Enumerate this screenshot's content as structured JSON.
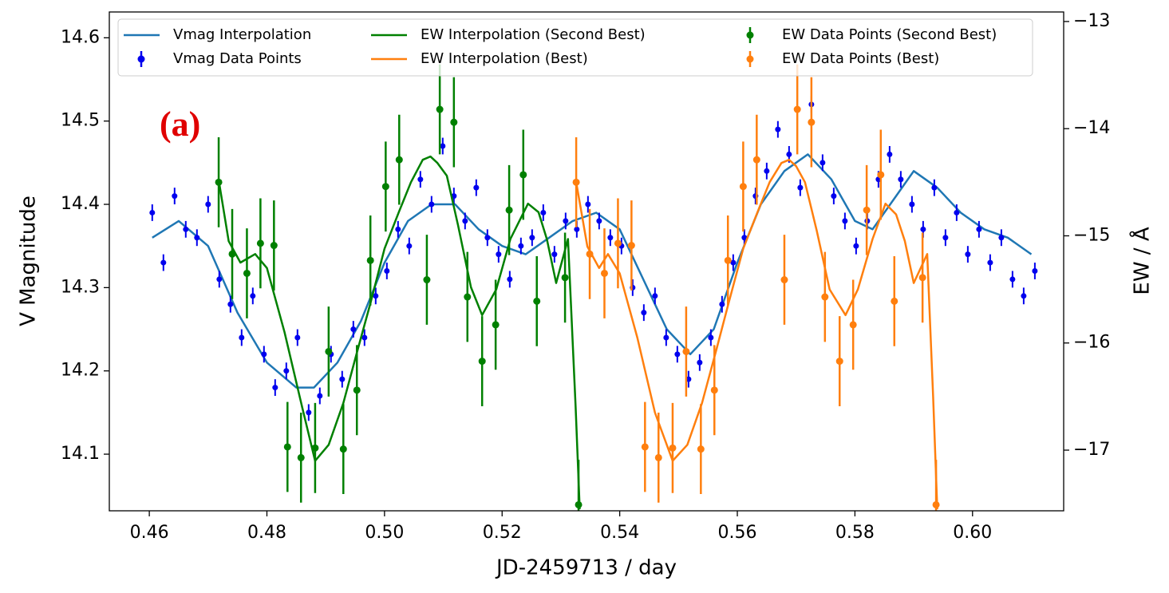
{
  "chart_data": {
    "type": "line",
    "annotation": "(a)",
    "xlabel": "JD-2459713 / day",
    "ylabel": "V Magnitude",
    "y2label": "EW / Å",
    "xlim": [
      0.4532,
      0.6155
    ],
    "ylim": [
      14.032,
      14.631
    ],
    "y2lim": [
      -17.566,
      -12.911
    ],
    "xticks": [
      {
        "value": 0.46,
        "label": "0.46"
      },
      {
        "value": 0.48,
        "label": "0.48"
      },
      {
        "value": 0.5,
        "label": "0.50"
      },
      {
        "value": 0.52,
        "label": "0.52"
      },
      {
        "value": 0.54,
        "label": "0.54"
      },
      {
        "value": 0.56,
        "label": "0.56"
      },
      {
        "value": 0.58,
        "label": "0.58"
      },
      {
        "value": 0.6,
        "label": "0.60"
      }
    ],
    "yticks": [
      14.1,
      14.2,
      14.3,
      14.4,
      14.5,
      14.6
    ],
    "y2ticks": [
      {
        "value": -17,
        "label": "−17"
      },
      {
        "value": -16,
        "label": "−16"
      },
      {
        "value": -15,
        "label": "−15"
      },
      {
        "value": -14,
        "label": "−14"
      },
      {
        "value": -13,
        "label": "−13"
      }
    ],
    "grid": false,
    "legend": "upper center",
    "series": [
      {
        "name": "Vmag Interpolation",
        "color": "#1f77b4",
        "style": "line",
        "x": [
          0.4605,
          0.465,
          0.47,
          0.475,
          0.48,
          0.485,
          0.488,
          0.492,
          0.496,
          0.5,
          0.504,
          0.508,
          0.512,
          0.516,
          0.52,
          0.524,
          0.528,
          0.532,
          0.536,
          0.54,
          0.544,
          0.548,
          0.552,
          0.556,
          0.56,
          0.564,
          0.568,
          0.572,
          0.576,
          0.58,
          0.583,
          0.587,
          0.59,
          0.594,
          0.598,
          0.602,
          0.606,
          0.61
        ],
        "values": [
          14.36,
          14.38,
          14.35,
          14.27,
          14.21,
          14.18,
          14.18,
          14.21,
          14.26,
          14.33,
          14.38,
          14.4,
          14.4,
          14.37,
          14.35,
          14.34,
          14.36,
          14.38,
          14.39,
          14.37,
          14.31,
          14.25,
          14.22,
          14.25,
          14.33,
          14.4,
          14.44,
          14.46,
          14.43,
          14.38,
          14.37,
          14.41,
          14.44,
          14.42,
          14.39,
          14.37,
          14.36,
          14.34
        ]
      },
      {
        "name": "Vmag Data Points",
        "color": "#0000ee",
        "style": "errorbar",
        "yerr": 0.01,
        "x": [
          0.4605,
          0.4624,
          0.4643,
          0.4662,
          0.4681,
          0.47,
          0.4719,
          0.4738,
          0.4757,
          0.4776,
          0.4795,
          0.4814,
          0.4833,
          0.4852,
          0.4871,
          0.489,
          0.4909,
          0.4928,
          0.4947,
          0.4966,
          0.4985,
          0.5004,
          0.5023,
          0.5042,
          0.5061,
          0.508,
          0.5099,
          0.5118,
          0.5137,
          0.5156,
          0.5175,
          0.5194,
          0.5213,
          0.5232,
          0.5251,
          0.527,
          0.5289,
          0.5308,
          0.5327,
          0.5346,
          0.5365,
          0.5384,
          0.5403,
          0.5422,
          0.5441,
          0.546,
          0.5479,
          0.5498,
          0.5517,
          0.5536,
          0.5555,
          0.5574,
          0.5593,
          0.5612,
          0.5631,
          0.565,
          0.5669,
          0.5688,
          0.5707,
          0.5726,
          0.5745,
          0.5764,
          0.5783,
          0.5802,
          0.5821,
          0.584,
          0.5859,
          0.5878,
          0.5897,
          0.5916,
          0.5935,
          0.5954,
          0.5973,
          0.5992,
          0.6011,
          0.603,
          0.6049,
          0.6068,
          0.6087,
          0.6106
        ],
        "values": [
          14.39,
          14.33,
          14.41,
          14.37,
          14.36,
          14.4,
          14.31,
          14.28,
          14.24,
          14.29,
          14.22,
          14.18,
          14.2,
          14.24,
          14.15,
          14.17,
          14.22,
          14.19,
          14.25,
          14.24,
          14.29,
          14.32,
          14.37,
          14.35,
          14.43,
          14.4,
          14.47,
          14.41,
          14.38,
          14.42,
          14.36,
          14.34,
          14.31,
          14.35,
          14.36,
          14.39,
          14.34,
          14.38,
          14.37,
          14.4,
          14.38,
          14.36,
          14.35,
          14.3,
          14.27,
          14.29,
          14.24,
          14.22,
          14.19,
          14.21,
          14.24,
          14.28,
          14.33,
          14.36,
          14.41,
          14.44,
          14.49,
          14.46,
          14.42,
          14.52,
          14.45,
          14.41,
          14.38,
          14.35,
          14.38,
          14.43,
          14.46,
          14.43,
          14.4,
          14.37,
          14.42,
          14.36,
          14.39,
          14.34,
          14.37,
          14.33,
          14.36,
          14.31,
          14.29,
          14.32
        ]
      },
      {
        "name": "EW Interpolation (Second Best)",
        "color": "#008000",
        "style": "line",
        "axis": "y2",
        "x": [
          0.4718,
          0.4735,
          0.4755,
          0.478,
          0.48,
          0.483,
          0.486,
          0.4882,
          0.4905,
          0.493,
          0.4955,
          0.4976,
          0.5,
          0.5025,
          0.5045,
          0.5065,
          0.5078,
          0.509,
          0.5106,
          0.5125,
          0.5147,
          0.5166,
          0.519,
          0.5214,
          0.5244,
          0.5262,
          0.5276,
          0.5292,
          0.5312,
          0.5325,
          0.5332
        ],
        "values": [
          -14.48,
          -15.05,
          -15.25,
          -15.17,
          -15.3,
          -15.9,
          -16.6,
          -17.1,
          -16.95,
          -16.56,
          -16.05,
          -15.63,
          -15.12,
          -14.77,
          -14.5,
          -14.29,
          -14.26,
          -14.32,
          -14.44,
          -14.9,
          -15.48,
          -15.74,
          -15.5,
          -15.03,
          -14.7,
          -14.78,
          -15.03,
          -15.44,
          -15.03,
          -16.6,
          -17.55
        ]
      },
      {
        "name": "EW Interpolation (Best)",
        "color": "#ff7f0e",
        "style": "line",
        "axis": "y2",
        "x": [
          0.5326,
          0.5345,
          0.5365,
          0.538,
          0.54,
          0.543,
          0.546,
          0.549,
          0.5515,
          0.554,
          0.5565,
          0.5585,
          0.561,
          0.5635,
          0.5655,
          0.5675,
          0.5688,
          0.57,
          0.5715,
          0.5735,
          0.5757,
          0.5784,
          0.5805,
          0.583,
          0.5852,
          0.587,
          0.5885,
          0.59,
          0.5923,
          0.5933,
          0.594
        ],
        "values": [
          -14.5,
          -15.1,
          -15.3,
          -15.17,
          -15.35,
          -15.95,
          -16.65,
          -17.1,
          -16.95,
          -16.56,
          -16.05,
          -15.63,
          -15.12,
          -14.77,
          -14.5,
          -14.32,
          -14.29,
          -14.35,
          -14.5,
          -14.95,
          -15.5,
          -15.74,
          -15.5,
          -15.03,
          -14.7,
          -14.8,
          -15.05,
          -15.44,
          -15.17,
          -16.5,
          -17.55
        ]
      },
      {
        "name": "EW Data Points (Second Best)",
        "color": "#008000",
        "style": "errorbar",
        "axis": "y2",
        "yerr": 0.42,
        "x": [
          0.4718,
          0.4741,
          0.4766,
          0.4789,
          0.4812,
          0.4835,
          0.4858,
          0.4882,
          0.4905,
          0.493,
          0.4953,
          0.4976,
          0.5002,
          0.5025,
          0.5072,
          0.5094,
          0.5118,
          0.5141,
          0.5166,
          0.5189,
          0.5212,
          0.5236,
          0.5259,
          0.5307,
          0.533
        ],
        "values": [
          -14.5,
          -15.17,
          -15.35,
          -15.07,
          -15.09,
          -16.97,
          -17.07,
          -16.98,
          -16.08,
          -16.99,
          -16.44,
          -15.23,
          -14.54,
          -14.29,
          -15.41,
          -13.82,
          -13.94,
          -15.57,
          -16.17,
          -15.83,
          -14.76,
          -14.43,
          -15.61,
          -15.39,
          -17.51
        ]
      },
      {
        "name": "EW Data Points (Best)",
        "color": "#ff7f0e",
        "style": "errorbar",
        "axis": "y2",
        "yerr": 0.42,
        "x": [
          0.5326,
          0.5349,
          0.5374,
          0.5397,
          0.542,
          0.5443,
          0.5466,
          0.549,
          0.5513,
          0.5538,
          0.5561,
          0.5584,
          0.561,
          0.5633,
          0.568,
          0.5702,
          0.5726,
          0.5749,
          0.5774,
          0.5797,
          0.582,
          0.5844,
          0.5867,
          0.5915,
          0.5938
        ],
        "values": [
          -14.5,
          -15.17,
          -15.35,
          -15.07,
          -15.09,
          -16.97,
          -17.07,
          -16.98,
          -16.08,
          -16.99,
          -16.44,
          -15.23,
          -14.54,
          -14.29,
          -15.41,
          -13.82,
          -13.94,
          -15.57,
          -16.17,
          -15.83,
          -14.76,
          -14.43,
          -15.61,
          -15.39,
          -17.51
        ]
      }
    ]
  }
}
